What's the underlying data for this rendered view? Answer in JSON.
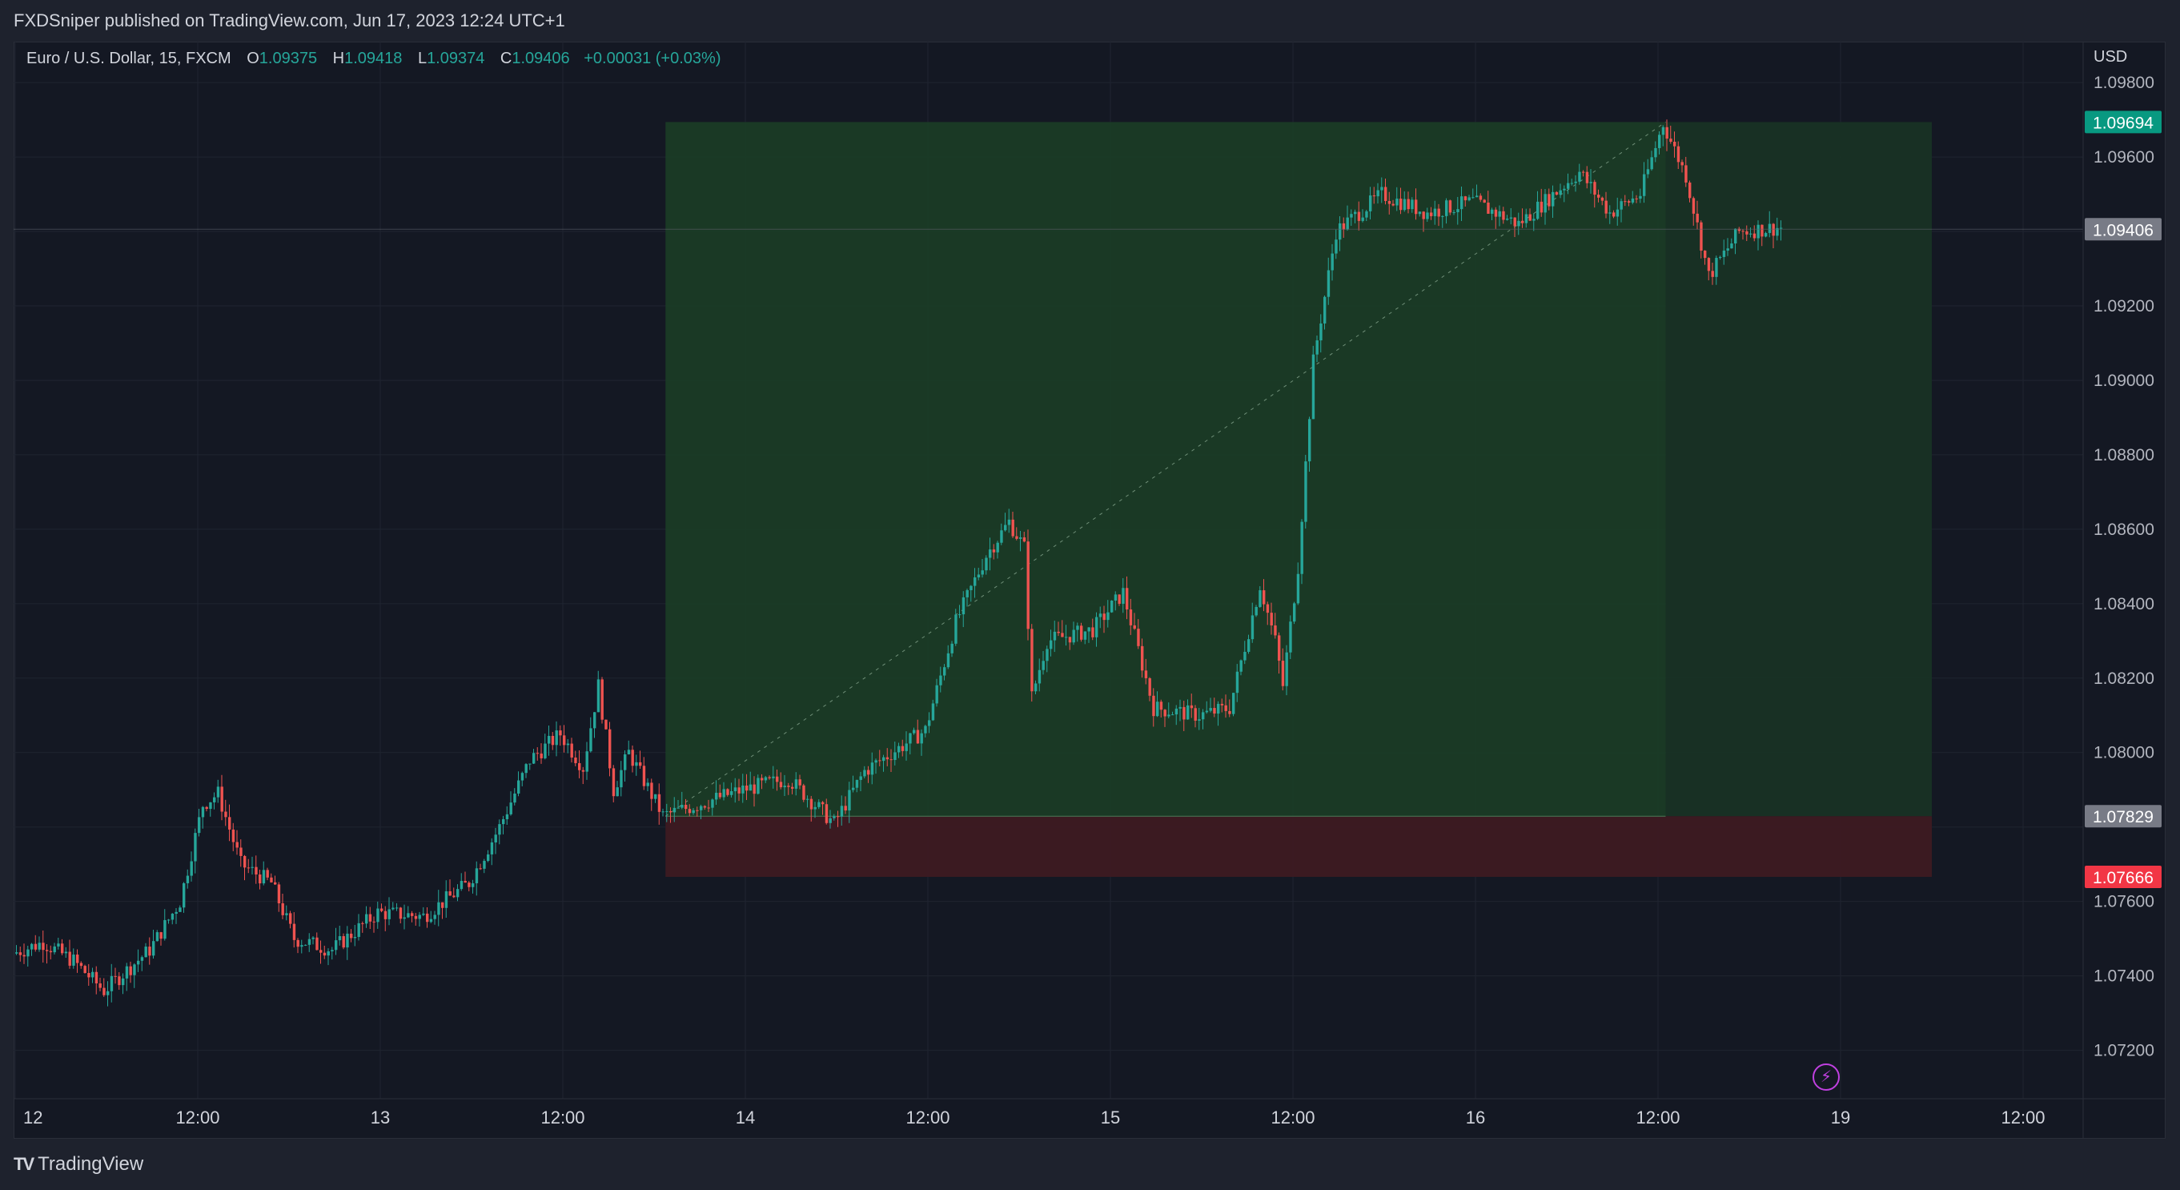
{
  "header": {
    "published": "FXDSniper published on TradingView.com, Jun 17, 2023 12:24 UTC+1"
  },
  "legend": {
    "symbol": "Euro / U.S. Dollar, 15, FXCM",
    "open_label": "O",
    "open": "1.09375",
    "high_label": "H",
    "high": "1.09418",
    "low_label": "L",
    "low": "1.09374",
    "close_label": "C",
    "close": "1.09406",
    "change": "+0.00031 (+0.03%)"
  },
  "currency": "USD",
  "footer": {
    "brand_mark": "TV",
    "brand": "TradingView"
  },
  "icons": {
    "alert": "lightning-icon"
  },
  "colors": {
    "background": "#141823",
    "up": "#26a69a",
    "down": "#ef5350",
    "profit_zone": "#1b3d26",
    "loss_zone": "#3d1a22",
    "target_label": "#089981",
    "stop_label": "#f23645",
    "last_price_label": "#787b86"
  },
  "chart_data": {
    "type": "candlestick",
    "symbol": "EURUSD",
    "timeframe": "15",
    "x_tick_labels": [
      "12",
      "12:00",
      "13",
      "12:00",
      "14",
      "12:00",
      "15",
      "12:00",
      "16",
      "12:00",
      "19",
      "12:00"
    ],
    "y_tick_labels": [
      "1.09800",
      "1.09600",
      "1.09200",
      "1.09000",
      "1.08800",
      "1.08600",
      "1.08400",
      "1.08200",
      "1.08000",
      "1.07600",
      "1.07400",
      "1.07200"
    ],
    "ylim": [
      1.0707,
      1.0991
    ],
    "price_labels": {
      "target": "1.09694",
      "last": "1.09406",
      "entry": "1.07829",
      "stop": "1.07666"
    },
    "long_position": {
      "entry": 1.07829,
      "target": 1.09694,
      "stop": 1.07666,
      "start": "Jun 13 ~18:45",
      "end": "Jun 19 ~06:00"
    },
    "price_path": [
      [
        "Jun 12 00:00",
        1.0746
      ],
      [
        "Jun 12 02:00",
        1.0749
      ],
      [
        "Jun 12 04:00",
        1.0744
      ],
      [
        "Jun 12 06:00",
        1.0736
      ],
      [
        "Jun 12 09:00",
        1.0747
      ],
      [
        "Jun 12 11:00",
        1.076
      ],
      [
        "Jun 12 12:30",
        1.0786
      ],
      [
        "Jun 12 13:30",
        1.0789
      ],
      [
        "Jun 12 15:00",
        1.077
      ],
      [
        "Jun 12 17:00",
        1.0765
      ],
      [
        "Jun 12 18:30",
        1.075
      ],
      [
        "Jun 12 21:00",
        1.0747
      ],
      [
        "Jun 13 00:00",
        1.0757
      ],
      [
        "Jun 13 03:00",
        1.0756
      ],
      [
        "Jun 13 06:00",
        1.0765
      ],
      [
        "Jun 13 08:00",
        1.078
      ],
      [
        "Jun 13 10:00",
        1.0798
      ],
      [
        "Jun 13 12:00",
        1.0805
      ],
      [
        "Jun 13 13:30",
        1.0796
      ],
      [
        "Jun 13 14:30",
        1.0818
      ],
      [
        "Jun 13 15:30",
        1.079
      ],
      [
        "Jun 13 16:30",
        1.08
      ],
      [
        "Jun 13 18:45",
        1.0783
      ],
      [
        "Jun 14 00:00",
        1.079
      ],
      [
        "Jun 14 03:00",
        1.0793
      ],
      [
        "Jun 14 06:00",
        1.0781
      ],
      [
        "Jun 14 08:00",
        1.0795
      ],
      [
        "Jun 14 12:00",
        1.0806
      ],
      [
        "Jun 14 14:00",
        1.0835
      ],
      [
        "Jun 14 16:00",
        1.0853
      ],
      [
        "Jun 14 17:30",
        1.0862
      ],
      [
        "Jun 14 18:30",
        1.0855
      ],
      [
        "Jun 14 19:00",
        1.0815
      ],
      [
        "Jun 14 20:00",
        1.083
      ],
      [
        "Jun 14 23:00",
        1.0833
      ],
      [
        "Jun 15 01:00",
        1.0843
      ],
      [
        "Jun 15 03:00",
        1.0812
      ],
      [
        "Jun 15 06:00",
        1.081
      ],
      [
        "Jun 15 08:00",
        1.0812
      ],
      [
        "Jun 15 10:00",
        1.0845
      ],
      [
        "Jun 15 11:00",
        1.083
      ],
      [
        "Jun 15 11:30",
        1.0818
      ],
      [
        "Jun 15 12:30",
        1.085
      ],
      [
        "Jun 15 13:30",
        1.0905
      ],
      [
        "Jun 15 15:00",
        1.094
      ],
      [
        "Jun 15 18:00",
        1.095
      ],
      [
        "Jun 15 21:00",
        1.0945
      ],
      [
        "Jun 16 00:00",
        1.0948
      ],
      [
        "Jun 16 03:00",
        1.0942
      ],
      [
        "Jun 16 07:00",
        1.0956
      ],
      [
        "Jun 16 09:00",
        1.0945
      ],
      [
        "Jun 16 11:00",
        1.095
      ],
      [
        "Jun 16 12:30",
        1.0969
      ],
      [
        "Jun 16 14:00",
        1.0955
      ],
      [
        "Jun 16 15:30",
        1.0928
      ],
      [
        "Jun 16 17:30",
        1.094
      ],
      [
        "Jun 16 20:00",
        1.0941
      ]
    ]
  }
}
